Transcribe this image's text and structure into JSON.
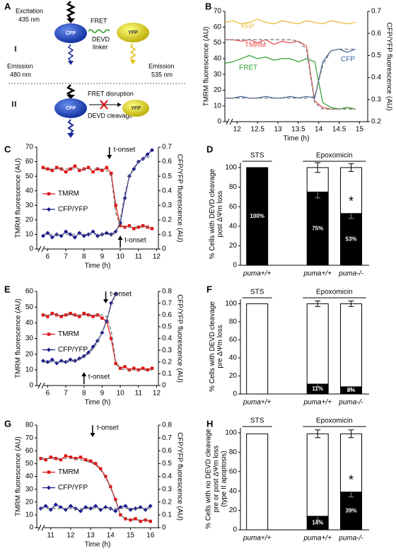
{
  "diagram": {
    "panel": "A",
    "excitation": "Excitation",
    "excitation_nm": "435 nm",
    "state1": "I",
    "emission_cfp": "Emission",
    "emission_cfp_nm": "480 nm",
    "cfp": "CFP",
    "fret": "FRET",
    "devd": "DEVD",
    "linker": "linker",
    "yfp": "YFP",
    "emission_yfp": "Emission",
    "emission_yfp_nm": "535 nm",
    "state2": "II",
    "fret_disruption": "FRET disruption",
    "devd_cleavage": "DEVD cleavage",
    "cfp2": "CFP",
    "yfp2": "YFP"
  },
  "chart_data": [
    {
      "type": "line",
      "panel": "B",
      "xlabel": "Time (h)",
      "ylabel": "TMRM fluorescence (AU)",
      "y2label": "CFP/YFP fluorescence (AU)",
      "legend": "inline",
      "xlim": [
        11.7,
        15.2
      ],
      "xticks": [
        12,
        12.5,
        13,
        13.5,
        14,
        14.5,
        15
      ],
      "ylim": [
        0,
        70
      ],
      "yticks": [
        0,
        10,
        20,
        30,
        40,
        50,
        60,
        70
      ],
      "y2lim": [
        0.2,
        0.7
      ],
      "y2ticks": [
        0.2,
        0.3,
        0.4,
        0.5,
        0.6,
        0.7
      ],
      "x": [
        11.7,
        11.9,
        12.1,
        12.3,
        12.5,
        12.7,
        12.9,
        13.1,
        13.3,
        13.5,
        13.7,
        13.9,
        14.1,
        14.3,
        14.5,
        14.7,
        14.9
      ],
      "series": [
        {
          "name": "YFP",
          "color": "#e8b830",
          "values": [
            63,
            64,
            62,
            63,
            65,
            63,
            62,
            64,
            63,
            62,
            64,
            63,
            62,
            64,
            63,
            62,
            63
          ]
        },
        {
          "name": "TMRM",
          "color": "#e84848",
          "values": [
            52,
            52,
            51,
            52,
            50,
            52,
            49,
            51,
            50,
            51,
            48,
            13,
            9,
            8,
            8,
            9,
            8
          ]
        },
        {
          "name": "FRET",
          "color": "#2e9e2e",
          "values": [
            37,
            38,
            40,
            42,
            40,
            41,
            39,
            40,
            40,
            38,
            40,
            38,
            12,
            9,
            8,
            9,
            8
          ]
        },
        {
          "name": "CFP",
          "color": "#2d5d9a",
          "values": [
            15,
            15,
            16,
            15,
            15,
            16,
            15,
            15,
            16,
            15,
            16,
            15,
            38,
            45,
            46,
            44,
            46
          ]
        },
        {
          "color": "#777777",
          "dash": true,
          "values": [
            52,
            52,
            52,
            52,
            52,
            52,
            52,
            52,
            52,
            51,
            46,
            12,
            8,
            8,
            8,
            8,
            8
          ]
        },
        {
          "color": "#777777",
          "dash": true,
          "values": [
            15,
            15,
            15,
            15,
            15,
            15,
            15,
            15,
            15,
            15,
            15,
            16,
            36,
            45,
            46,
            46,
            46
          ]
        }
      ]
    },
    {
      "type": "line",
      "panel": "C",
      "xlabel": "Time (h)",
      "ylabel": "TMRM fluorescence (AU)",
      "y2label": "CFP/YFP fluorescence (AU)",
      "legend": "left",
      "xlim": [
        5.4,
        12.1
      ],
      "xticks": [
        6,
        7,
        8,
        9,
        10,
        11,
        12
      ],
      "ylim": [
        0,
        70
      ],
      "yticks": [
        0,
        10,
        20,
        30,
        40,
        50,
        60,
        70
      ],
      "y2lim": [
        0,
        0.7
      ],
      "y2ticks": [
        0,
        0.1,
        0.2,
        0.3,
        0.4,
        0.5,
        0.6,
        0.7
      ],
      "x": [
        5.75,
        6,
        6.25,
        6.5,
        6.75,
        7,
        7.25,
        7.5,
        7.75,
        8,
        8.25,
        8.5,
        8.75,
        9,
        9.25,
        9.5,
        9.75,
        10,
        10.25,
        10.5,
        10.75,
        11,
        11.25,
        11.5,
        11.75
      ],
      "series": [
        {
          "name": "TMRM",
          "color": "#e01010",
          "marker": "square",
          "values": [
            56,
            55,
            54,
            56,
            55,
            53,
            55,
            57,
            54,
            55,
            56,
            53,
            55,
            54,
            56,
            52,
            30,
            16,
            15,
            16,
            14,
            15,
            16,
            15,
            14
          ]
        },
        {
          "name": "CFP/YFP",
          "color": "#1a1a8c",
          "marker": "diamond",
          "axis": "y2",
          "values": [
            0.09,
            0.11,
            0.08,
            0.1,
            0.09,
            0.12,
            0.1,
            0.08,
            0.11,
            0.09,
            0.1,
            0.12,
            0.09,
            0.1,
            0.11,
            0.1,
            0.12,
            0.18,
            0.35,
            0.5,
            0.55,
            0.6,
            0.62,
            0.65,
            0.68
          ]
        },
        {
          "color": "#777777",
          "dash": true,
          "values": [
            55,
            55,
            55,
            55,
            55,
            55,
            55,
            55,
            55,
            55,
            55,
            55,
            55,
            55,
            54,
            50,
            25,
            16,
            15,
            15,
            15,
            15,
            15,
            15,
            15
          ]
        },
        {
          "color": "#777777",
          "dash": true,
          "axis": "y2",
          "values": [
            0.1,
            0.1,
            0.1,
            0.1,
            0.1,
            0.1,
            0.1,
            0.1,
            0.1,
            0.1,
            0.1,
            0.1,
            0.1,
            0.1,
            0.1,
            0.1,
            0.1,
            0.2,
            0.38,
            0.5,
            0.56,
            0.6,
            0.62,
            0.63,
            0.64
          ]
        }
      ],
      "annotations": [
        {
          "text": "t-onset",
          "x": 9.4,
          "side": "top"
        },
        {
          "text": "t-onset",
          "x": 10,
          "side": "bottom"
        }
      ]
    },
    {
      "type": "stacked_bar",
      "panel": "D",
      "ylabel": [
        "% Cells with DEVD cleavage",
        "post  ΔΨm  loss"
      ],
      "categories": [
        "puma+/+",
        "puma+/+",
        "puma-/-"
      ],
      "groups": [
        {
          "label": "STS",
          "categories": 1
        },
        {
          "label": "Epoxomicin",
          "categories": 2
        }
      ],
      "ylim": [
        0,
        105
      ],
      "yticks": [
        0,
        20,
        40,
        60,
        80,
        100
      ],
      "series": [
        {
          "color": "#000000",
          "values": [
            100,
            75,
            53
          ],
          "errors": [
            0,
            6,
            5
          ],
          "value_labels": [
            "100%",
            "75%",
            "53%"
          ]
        },
        {
          "color": "#ffffff",
          "values": [
            0,
            25,
            47
          ],
          "errors": [
            0,
            5,
            4
          ]
        }
      ],
      "annotations": [
        {
          "text": "*",
          "category": 2
        }
      ]
    },
    {
      "type": "line",
      "panel": "E",
      "xlabel": "Time (h)",
      "ylabel": "TMRM fluorescence (AU)",
      "y2label": "CFP/YFP fluorescence (AU)",
      "legend": "left",
      "xlim": [
        5.4,
        12.1
      ],
      "xticks": [
        6,
        7,
        8,
        9,
        10,
        11,
        12
      ],
      "ylim": [
        0,
        60
      ],
      "yticks": [
        0,
        10,
        20,
        30,
        40,
        50,
        60
      ],
      "y2lim": [
        0,
        0.8
      ],
      "y2ticks": [
        0,
        0.1,
        0.2,
        0.3,
        0.4,
        0.5,
        0.6,
        0.7,
        0.8
      ],
      "x": [
        5.75,
        6,
        6.25,
        6.5,
        6.75,
        7,
        7.25,
        7.5,
        7.75,
        8,
        8.25,
        8.5,
        8.75,
        9,
        9.25,
        9.5,
        9.75,
        10,
        10.25,
        10.5,
        10.75,
        11,
        11.25,
        11.5,
        11.75
      ],
      "series": [
        {
          "name": "TMRM",
          "color": "#e01010",
          "marker": "square",
          "values": [
            45,
            44,
            46,
            45,
            44,
            45,
            46,
            45,
            44,
            46,
            45,
            44,
            45,
            43,
            41,
            30,
            14,
            11,
            12,
            10,
            11,
            10,
            11,
            10,
            11
          ]
        },
        {
          "name": "CFP/YFP",
          "color": "#1a1a8c",
          "marker": "diamond",
          "axis": "y2",
          "values": [
            0.21,
            0.2,
            0.22,
            0.19,
            0.21,
            0.2,
            0.22,
            0.21,
            0.23,
            0.25,
            0.28,
            0.33,
            0.38,
            0.45,
            0.55,
            0.7,
            0.78,
            null,
            null,
            null,
            null,
            null,
            null,
            null,
            null
          ]
        },
        {
          "color": "#777777",
          "dash": true,
          "values": [
            45,
            45,
            45,
            45,
            45,
            45,
            45,
            45,
            45,
            45,
            45,
            45,
            45,
            45,
            44,
            35,
            15,
            11,
            10,
            10,
            10,
            10,
            10,
            10,
            10
          ]
        },
        {
          "color": "#777777",
          "dash": true,
          "axis": "y2",
          "values": [
            0.2,
            0.2,
            0.2,
            0.2,
            0.2,
            0.2,
            0.2,
            0.21,
            0.22,
            0.24,
            0.27,
            0.31,
            0.37,
            0.45,
            0.56,
            0.68,
            0.78,
            null,
            null,
            null,
            null,
            null,
            null,
            null,
            null
          ]
        }
      ],
      "annotations": [
        {
          "text": "t-onset",
          "x": 9.2,
          "side": "top"
        },
        {
          "text": "t-onset",
          "x": 8,
          "side": "bottom"
        }
      ]
    },
    {
      "type": "stacked_bar",
      "panel": "F",
      "ylabel": [
        "% Cells with DEVD cleavage",
        "pre  ΔΨm  loss"
      ],
      "categories": [
        "puma+/+",
        "puma+/+",
        "puma-/-"
      ],
      "groups": [
        {
          "label": "STS",
          "categories": 1
        },
        {
          "label": "Epoxomicin",
          "categories": 2
        }
      ],
      "ylim": [
        0,
        105
      ],
      "yticks": [
        0,
        20,
        40,
        60,
        80,
        100
      ],
      "series": [
        {
          "color": "#000000",
          "values": [
            0,
            11,
            8
          ],
          "errors": [
            0,
            3,
            4
          ],
          "value_labels": [
            "0%",
            "11%",
            "8%"
          ]
        },
        {
          "color": "#ffffff",
          "values": [
            100,
            89,
            92
          ],
          "errors": [
            0,
            3,
            3
          ]
        }
      ]
    },
    {
      "type": "line",
      "panel": "G",
      "xlabel": "Time (h)",
      "ylabel": "TMRM fluorescence (AU)",
      "y2label": "CFP/YFP fluorescence (AU)",
      "legend": "left",
      "xlim": [
        10.3,
        16.4
      ],
      "xticks": [
        11,
        12,
        13,
        14,
        15,
        16
      ],
      "ylim": [
        0,
        80
      ],
      "yticks": [
        0,
        10,
        20,
        30,
        40,
        50,
        60,
        70,
        80
      ],
      "y2lim": [
        0,
        0.8
      ],
      "y2ticks": [
        0,
        0.1,
        0.2,
        0.3,
        0.4,
        0.5,
        0.6,
        0.7,
        0.8
      ],
      "x": [
        10.5,
        10.75,
        11,
        11.25,
        11.5,
        11.75,
        12,
        12.25,
        12.5,
        12.75,
        13,
        13.25,
        13.5,
        13.75,
        14,
        14.25,
        14.5,
        14.75,
        15,
        15.25,
        15.5,
        15.75,
        16
      ],
      "series": [
        {
          "name": "TMRM",
          "color": "#e01010",
          "marker": "square",
          "values": [
            54,
            53,
            55,
            54,
            53,
            56,
            55,
            54,
            55,
            53,
            52,
            50,
            46,
            40,
            32,
            22,
            10,
            7,
            6,
            7,
            5,
            6,
            5
          ]
        },
        {
          "name": "CFP/YFP",
          "color": "#1a1a8c",
          "marker": "diamond",
          "axis": "y2",
          "values": [
            0.15,
            0.17,
            0.14,
            0.18,
            0.16,
            0.14,
            0.17,
            0.15,
            0.13,
            0.16,
            0.15,
            0.17,
            0.14,
            0.16,
            0.15,
            0.13,
            0.16,
            0.17,
            0.14,
            0.15,
            0.16,
            0.14,
            0.17
          ]
        },
        {
          "color": "#777777",
          "dash": true,
          "values": [
            54,
            54,
            54,
            54,
            54,
            54,
            54,
            53.5,
            53,
            52,
            51,
            49,
            45,
            39,
            31,
            21,
            10,
            7,
            6,
            6,
            6,
            6,
            6
          ]
        },
        {
          "color": "#777777",
          "dash": true,
          "axis": "y2",
          "values": [
            0.15,
            0.15,
            0.15,
            0.15,
            0.15,
            0.15,
            0.15,
            0.15,
            0.15,
            0.15,
            0.15,
            0.15,
            0.15,
            0.15,
            0.15,
            0.15,
            0.15,
            0.15,
            0.15,
            0.15,
            0.15,
            0.15,
            0.15
          ]
        }
      ],
      "annotations": [
        {
          "text": "t-onset",
          "x": 13.1,
          "side": "top"
        }
      ]
    },
    {
      "type": "stacked_bar",
      "panel": "H",
      "ylabel": [
        "% Cells with no DEVD cleavage",
        "pre or post ΔΨm loss",
        "(type II apoptosis)"
      ],
      "categories": [
        "puma+/+",
        "puma+/+",
        "puma-/-"
      ],
      "groups": [
        {
          "label": "STS",
          "categories": 1
        },
        {
          "label": "Epoxomicin",
          "categories": 2
        }
      ],
      "ylim": [
        0,
        105
      ],
      "yticks": [
        0,
        20,
        40,
        60,
        80,
        100
      ],
      "series": [
        {
          "color": "#000000",
          "values": [
            0,
            14,
            39
          ],
          "errors": [
            0,
            4,
            5
          ],
          "value_labels": [
            "0%",
            "14%",
            "39%"
          ]
        },
        {
          "color": "#ffffff",
          "values": [
            99,
            85,
            60
          ],
          "errors": [
            0,
            4,
            4
          ]
        }
      ],
      "annotations": [
        {
          "text": "*",
          "category": 2
        }
      ]
    }
  ]
}
